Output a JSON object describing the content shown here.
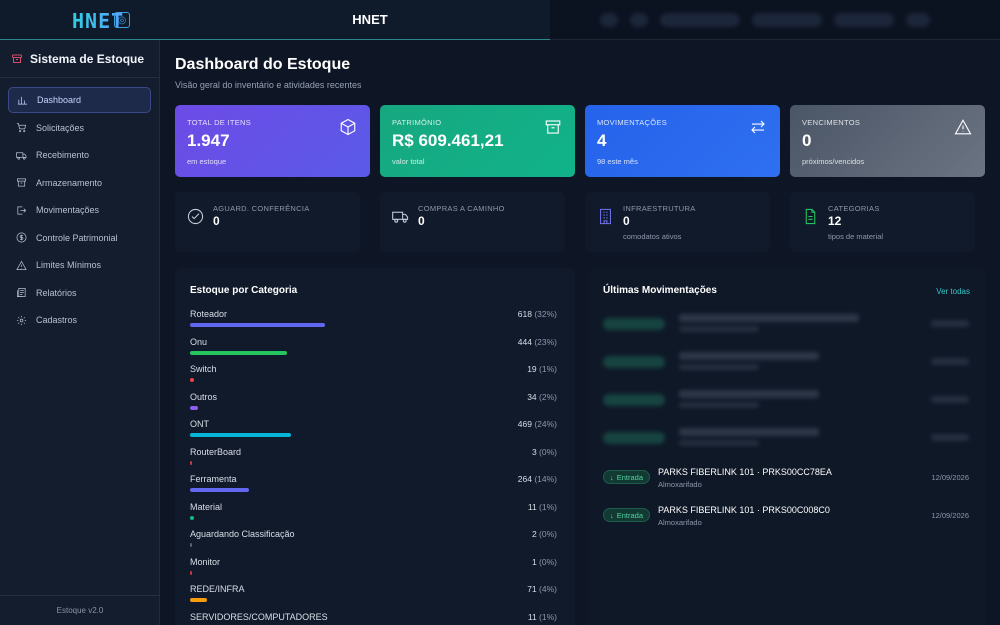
{
  "topbar": {
    "logo": "HNET",
    "title": "HNET"
  },
  "sidebar": {
    "title": "Sistema de Estoque",
    "items": [
      {
        "label": "Dashboard",
        "icon": "bar-chart-icon",
        "active": true
      },
      {
        "label": "Solicitações",
        "icon": "cart-icon"
      },
      {
        "label": "Recebimento",
        "icon": "truck-icon"
      },
      {
        "label": "Armazenamento",
        "icon": "archive-icon"
      },
      {
        "label": "Movimentações",
        "icon": "arrow-right-box-icon"
      },
      {
        "label": "Controle Patrimonial",
        "icon": "dollar-circle-icon"
      },
      {
        "label": "Limites Mínimos",
        "icon": "warning-icon"
      },
      {
        "label": "Relatórios",
        "icon": "report-icon"
      },
      {
        "label": "Cadastros",
        "icon": "gear-icon"
      }
    ],
    "footer": "Estoque v2.0"
  },
  "page": {
    "title": "Dashboard do Estoque",
    "subtitle": "Visão geral do inventário e atividades recentes"
  },
  "stats": [
    {
      "label": "TOTAL DE ITENS",
      "value": "1.947",
      "sub": "em estoque",
      "icon": "cube-icon",
      "color": "#6d4be6"
    },
    {
      "label": "PATRIMÔNIO",
      "value": "R$ 609.461,21",
      "sub": "valor total",
      "icon": "archive-icon",
      "color": "#16a77f"
    },
    {
      "label": "MOVIMENTAÇÕES",
      "value": "4",
      "sub": "98 este mês",
      "icon": "swap-icon",
      "color": "#2563eb"
    },
    {
      "label": "VENCIMENTOS",
      "value": "0",
      "sub": "próximos/vencidos",
      "icon": "warning-icon",
      "color": "#5b6474"
    }
  ],
  "mini": [
    {
      "label": "AGUARD. CONFERÊNCIA",
      "value": "0",
      "sub": "",
      "icon": "check-circle-icon"
    },
    {
      "label": "COMPRAS A CAMINHO",
      "value": "0",
      "sub": "",
      "icon": "truck-icon"
    },
    {
      "label": "INFRAESTRUTURA",
      "value": "0",
      "sub": "comodatos ativos",
      "icon": "building-icon"
    },
    {
      "label": "CATEGORIAS",
      "value": "12",
      "sub": "tipos de material",
      "icon": "document-icon"
    }
  ],
  "categories": {
    "title": "Estoque por Categoria",
    "rows": [
      {
        "name": "Roteador",
        "count": "618",
        "pct": "(32%)",
        "fraction": 0.32,
        "color": "#6366f1"
      },
      {
        "name": "Onu",
        "count": "444",
        "pct": "(23%)",
        "fraction": 0.23,
        "color": "#22c55e"
      },
      {
        "name": "Switch",
        "count": "19",
        "pct": "(1%)",
        "fraction": 0.01,
        "color": "#ef4444"
      },
      {
        "name": "Outros",
        "count": "34",
        "pct": "(2%)",
        "fraction": 0.02,
        "color": "#8b5cf6"
      },
      {
        "name": "ONT",
        "count": "469",
        "pct": "(24%)",
        "fraction": 0.24,
        "color": "#06b6d4"
      },
      {
        "name": "RouterBoard",
        "count": "3",
        "pct": "(0%)",
        "fraction": 0.0,
        "color": "#ef4444"
      },
      {
        "name": "Ferramenta",
        "count": "264",
        "pct": "(14%)",
        "fraction": 0.14,
        "color": "#6366f1"
      },
      {
        "name": "Material",
        "count": "11",
        "pct": "(1%)",
        "fraction": 0.01,
        "color": "#10b981"
      },
      {
        "name": "Aguardando Classificação",
        "count": "2",
        "pct": "(0%)",
        "fraction": 0.0,
        "color": "#6b7280"
      },
      {
        "name": "Monitor",
        "count": "1",
        "pct": "(0%)",
        "fraction": 0.0,
        "color": "#ef4444"
      },
      {
        "name": "REDE/INFRA",
        "count": "71",
        "pct": "(4%)",
        "fraction": 0.04,
        "color": "#f59e0b"
      },
      {
        "name": "SERVIDORES/COMPUTADORES",
        "count": "11",
        "pct": "(1%)",
        "fraction": 0.01,
        "color": "#6366f1"
      }
    ]
  },
  "movements": {
    "title": "Últimas Movimentações",
    "see_all": "Ver todas",
    "rows": [
      {
        "type": "Entrada",
        "title": "PARKS FIBERLINK 101 · PRKS00CC78EA",
        "location": "Almoxarifado",
        "date": "12/09/2026"
      },
      {
        "type": "Entrada",
        "title": "PARKS FIBERLINK 101 · PRKS00C008C0",
        "location": "Almoxarifado",
        "date": "12/09/2026"
      }
    ]
  }
}
